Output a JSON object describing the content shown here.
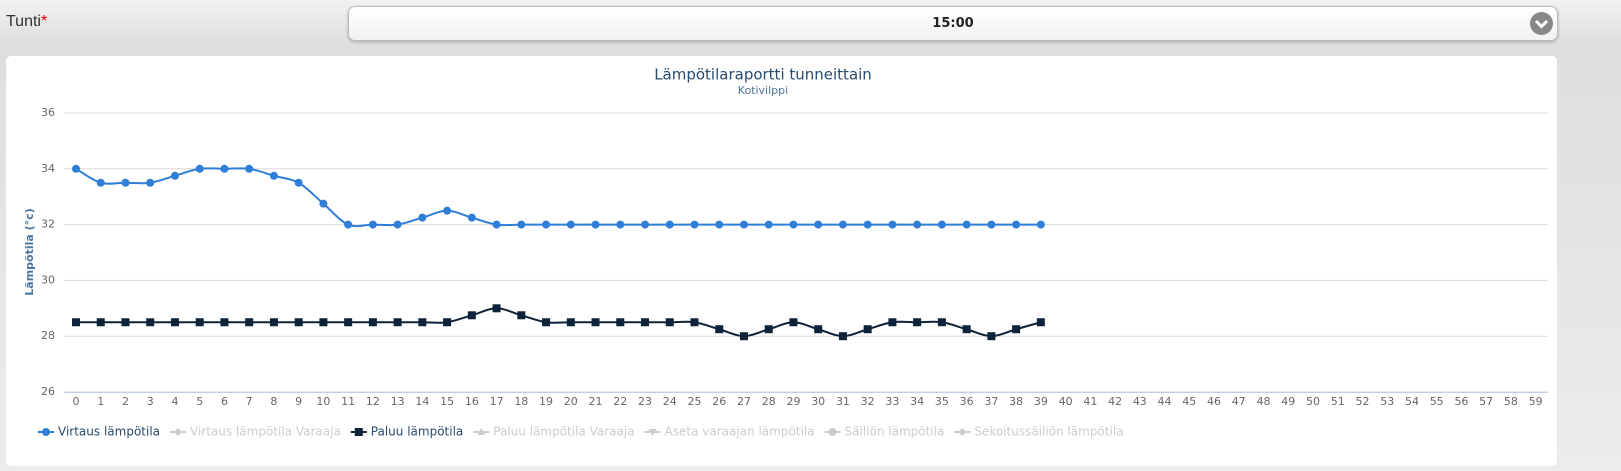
{
  "form": {
    "label": "Tunti",
    "required_mark": "*",
    "selected": "15:00"
  },
  "chart_data": {
    "type": "line",
    "title": "Lämpötilaraportti tunneittain",
    "subtitle": "Kotivilppi",
    "y_label": "Lämpötila (°c)",
    "categories": [
      0,
      1,
      2,
      3,
      4,
      5,
      6,
      7,
      8,
      9,
      10,
      11,
      12,
      13,
      14,
      15,
      16,
      17,
      18,
      19,
      20,
      21,
      22,
      23,
      24,
      25,
      26,
      27,
      28,
      29,
      30,
      31,
      32,
      33,
      34,
      35,
      36,
      37,
      38,
      39,
      40,
      41,
      42,
      43,
      44,
      45,
      46,
      47,
      48,
      49,
      50,
      51,
      52,
      53,
      54,
      55,
      56,
      57,
      58,
      59
    ],
    "ylim": [
      26,
      36
    ],
    "yticks": [
      26,
      28,
      30,
      32,
      34,
      36
    ],
    "grid": true,
    "legend_position": "bottom-left",
    "series": [
      {
        "name": "Virtaus lämpötila",
        "color": "#2f7ed8",
        "marker": "circle",
        "visible": true,
        "values": [
          34,
          33.5,
          33.5,
          33.5,
          33.75,
          34,
          34,
          34,
          33.75,
          33.5,
          32.75,
          32,
          32,
          32,
          32.25,
          32.5,
          32.25,
          32,
          32,
          32,
          32,
          32,
          32,
          32,
          32,
          32,
          32,
          32,
          32,
          32,
          32,
          32,
          32,
          32,
          32,
          32,
          32,
          32,
          32,
          32,
          null,
          null,
          null,
          null,
          null,
          null,
          null,
          null,
          null,
          null,
          null,
          null,
          null,
          null,
          null,
          null,
          null,
          null,
          null,
          null
        ]
      },
      {
        "name": "Virtaus lämpötila Varaaja",
        "color": "#cccccc",
        "marker": "diamond",
        "visible": false
      },
      {
        "name": "Paluu lämpötila",
        "color": "#0d233a",
        "marker": "square",
        "visible": true,
        "values": [
          28.5,
          28.5,
          28.5,
          28.5,
          28.5,
          28.5,
          28.5,
          28.5,
          28.5,
          28.5,
          28.5,
          28.5,
          28.5,
          28.5,
          28.5,
          28.5,
          28.75,
          29,
          28.75,
          28.5,
          28.5,
          28.5,
          28.5,
          28.5,
          28.5,
          28.5,
          28.25,
          28,
          28.25,
          28.5,
          28.25,
          28,
          28.25,
          28.5,
          28.5,
          28.5,
          28.25,
          28,
          28.25,
          28.5,
          null,
          null,
          null,
          null,
          null,
          null,
          null,
          null,
          null,
          null,
          null,
          null,
          null,
          null,
          null,
          null,
          null,
          null,
          null,
          null
        ]
      },
      {
        "name": "Paluu lämpötila Varaaja",
        "color": "#cccccc",
        "marker": "triangle",
        "visible": false
      },
      {
        "name": "Aseta varaajan lämpötila",
        "color": "#cccccc",
        "marker": "triangle-down",
        "visible": false
      },
      {
        "name": "Säiliön lämpötila",
        "color": "#cccccc",
        "marker": "circle",
        "visible": false
      },
      {
        "name": "Sekoitussäiliön lämpötila",
        "color": "#cccccc",
        "marker": "diamond",
        "visible": false
      }
    ]
  }
}
